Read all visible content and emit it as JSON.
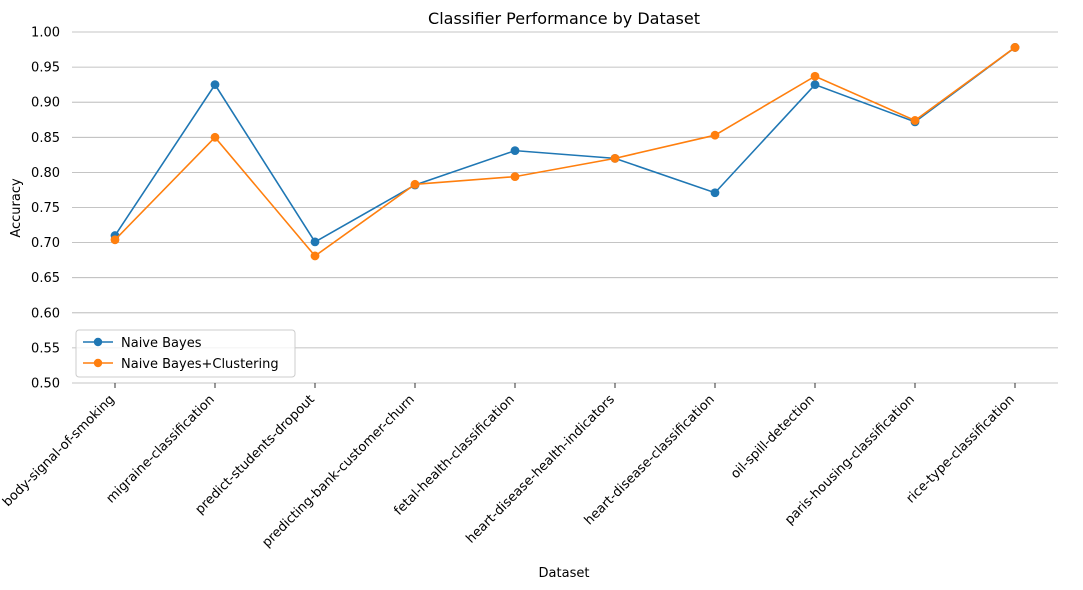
{
  "chart_data": {
    "type": "line",
    "title": "Classifier Performance by Dataset",
    "xlabel": "Dataset",
    "ylabel": "Accuracy",
    "ylim": [
      0.5,
      1.0
    ],
    "yticks": [
      "0.50",
      "0.55",
      "0.60",
      "0.65",
      "0.70",
      "0.75",
      "0.80",
      "0.85",
      "0.90",
      "0.95",
      "1.00"
    ],
    "grid": "horizontal",
    "legend_position": "lower-left",
    "categories": [
      "body-signal-of-smoking",
      "migraine-classification",
      "predict-students-dropout",
      "predicting-bank-customer-churn",
      "fetal-health-classification",
      "heart-disease-health-indicators",
      "heart-disease-classification",
      "oil-spill-detection",
      "paris-housing-classification",
      "rice-type-classification"
    ],
    "series": [
      {
        "name": "Naive Bayes",
        "color": "#1f77b4",
        "values": [
          0.71,
          0.925,
          0.701,
          0.782,
          0.831,
          0.82,
          0.771,
          0.925,
          0.872,
          0.978
        ]
      },
      {
        "name": "Naive Bayes+Clustering",
        "color": "#ff7f0e",
        "values": [
          0.704,
          0.85,
          0.681,
          0.783,
          0.794,
          0.82,
          0.853,
          0.937,
          0.874,
          0.978
        ]
      }
    ]
  }
}
